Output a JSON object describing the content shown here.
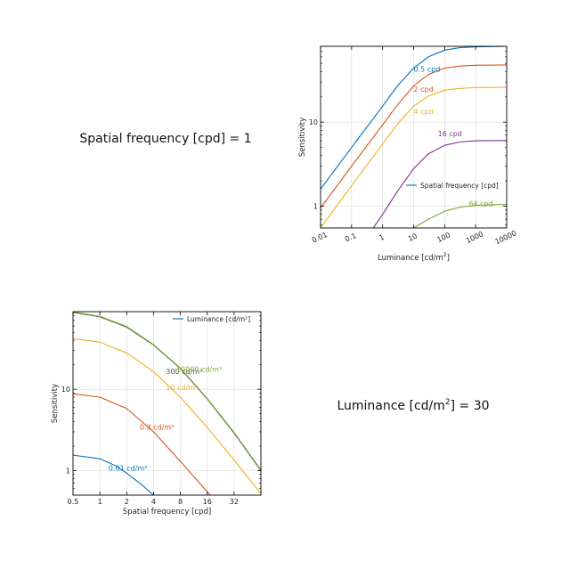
{
  "panels": {
    "top_left_label": "Spatial frequency [cpd] = 1",
    "bottom_right_label_prefix": "Luminance [cd/m",
    "bottom_right_label_sup": "2",
    "bottom_right_label_suffix": "] = 30"
  },
  "chart_data": [
    {
      "type": "line",
      "xscale": "log",
      "yscale": "log",
      "xlim": [
        0.01,
        10000
      ],
      "ylim": [
        0.55,
        80
      ],
      "xlabel": "Luminance [cd/m",
      "xlabel_sup": "2",
      "xlabel_suffix": "]",
      "ylabel": "Sensitivity",
      "grid": true,
      "legend": {
        "placement": "center-right",
        "entries": [
          "Spatial frequency [cpd]"
        ]
      },
      "xticks": [
        {
          "value": 0.01,
          "label": "0.01"
        },
        {
          "value": 0.1,
          "label": "0.1"
        },
        {
          "value": 1,
          "label": "1"
        },
        {
          "value": 10,
          "label": "10"
        },
        {
          "value": 100,
          "label": "100"
        },
        {
          "value": 1000,
          "label": "1000"
        },
        {
          "value": 10000,
          "label": "10000"
        }
      ],
      "yticks": [
        {
          "value": 1,
          "label": "1"
        },
        {
          "value": 10,
          "label": "10"
        }
      ],
      "series": [
        {
          "name": "0.5 cpd",
          "color": "#0072bd",
          "label_at": [
            10,
            40
          ],
          "x": [
            0.01,
            0.1,
            1,
            3,
            10,
            30,
            100,
            300,
            1000,
            10000
          ],
          "y": [
            1.6,
            5.0,
            15.5,
            27,
            44,
            60,
            72,
            77,
            79,
            80
          ]
        },
        {
          "name": "2 cpd",
          "color": "#d95319",
          "label_at": [
            10,
            23
          ],
          "x": [
            0.01,
            0.1,
            1,
            3,
            10,
            30,
            100,
            300,
            1000,
            10000
          ],
          "y": [
            0.95,
            3.0,
            9.3,
            16,
            27,
            37,
            44,
            46.5,
            47.5,
            48
          ]
        },
        {
          "name": "4 cpd",
          "color": "#edb120",
          "label_at": [
            10,
            12.5
          ],
          "x": [
            0.01,
            0.1,
            1,
            3,
            10,
            30,
            100,
            300,
            1000,
            10000
          ],
          "y": [
            0.55,
            1.75,
            5.5,
            9.5,
            15.5,
            20.5,
            24,
            25.2,
            25.8,
            26
          ]
        },
        {
          "name": "16 cpd",
          "color": "#7e2f8e",
          "label_at": [
            60,
            6.8
          ],
          "x": [
            0.5,
            1,
            3,
            10,
            30,
            100,
            300,
            1000,
            10000
          ],
          "y": [
            0.55,
            0.8,
            1.5,
            2.8,
            4.2,
            5.3,
            5.8,
            6.0,
            6.05
          ]
        },
        {
          "name": "64 cpd",
          "color": "#77ac30",
          "label_at": [
            600,
            1.0
          ],
          "x": [
            10,
            30,
            100,
            300,
            1000,
            3000,
            10000
          ],
          "y": [
            0.55,
            0.7,
            0.87,
            0.97,
            1.02,
            1.04,
            1.05
          ]
        }
      ]
    },
    {
      "type": "line",
      "xscale": "log",
      "yscale": "log",
      "xlim": [
        0.5,
        64
      ],
      "ylim": [
        0.5,
        90
      ],
      "xlabel": "Spatial frequency [cpd]",
      "ylabel": "Sensitivity",
      "grid": true,
      "legend": {
        "placement": "top-right",
        "entries": [
          "Luminance [cd/m²]"
        ]
      },
      "xticks": [
        {
          "value": 0.5,
          "label": "0.5"
        },
        {
          "value": 1,
          "label": "1"
        },
        {
          "value": 2,
          "label": "2"
        },
        {
          "value": 4,
          "label": "4"
        },
        {
          "value": 8,
          "label": "8"
        },
        {
          "value": 16,
          "label": "16"
        },
        {
          "value": 32,
          "label": "32"
        }
      ],
      "yticks": [
        {
          "value": 1,
          "label": "1"
        },
        {
          "value": 10,
          "label": "10"
        }
      ],
      "series": [
        {
          "name": "0.01 cd/m²",
          "color": "#0072bd",
          "label_at": [
            1.25,
            1.0
          ],
          "x": [
            0.5,
            1,
            1.5,
            2,
            3,
            4,
            5
          ],
          "y": [
            1.55,
            1.4,
            1.15,
            0.93,
            0.66,
            0.5,
            0.4
          ]
        },
        {
          "name": "0.3 cd/m²",
          "color": "#d95319",
          "label_at": [
            2.8,
            3.2
          ],
          "x": [
            0.5,
            1,
            2,
            4,
            8,
            16,
            22
          ],
          "y": [
            8.8,
            8.0,
            5.8,
            3.0,
            1.3,
            0.55,
            0.38
          ]
        },
        {
          "name": "10 cd/m²",
          "color": "#edb120",
          "label_at": [
            5.5,
            9.8
          ],
          "x": [
            0.5,
            1,
            2,
            4,
            8,
            16,
            32,
            64
          ],
          "y": [
            42,
            38,
            28,
            16.5,
            8.0,
            3.4,
            1.35,
            0.52
          ]
        },
        {
          "name": "300 cd/m²",
          "color": "#555555",
          "label_at": [
            5.5,
            15.5
          ],
          "x": [
            0.5,
            1,
            2,
            4,
            8,
            16,
            32,
            64
          ],
          "y": [
            88,
            78,
            58,
            35,
            18,
            7.6,
            2.9,
            1.0
          ]
        },
        {
          "name": "10000 cd/m²",
          "color": "#77ac30",
          "label_at": [
            7.2,
            16.5
          ],
          "x": [
            0.5,
            1,
            2,
            4,
            8,
            16,
            32,
            64
          ],
          "y": [
            89,
            79,
            59,
            35.5,
            18.2,
            7.7,
            2.95,
            1.02
          ]
        }
      ]
    }
  ]
}
